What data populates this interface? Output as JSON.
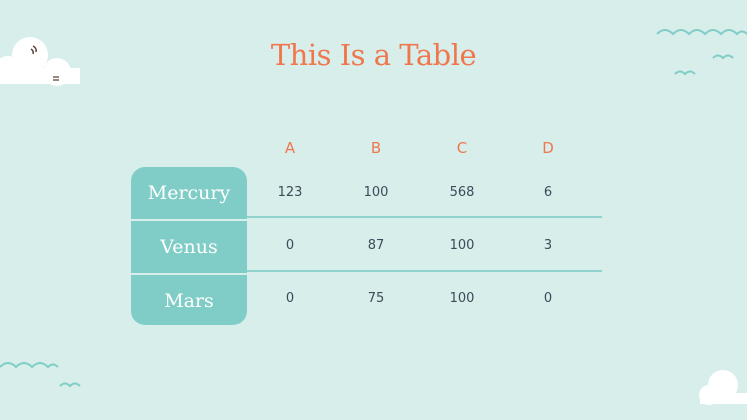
{
  "title": "This Is a Table",
  "table": {
    "columns": [
      "A",
      "B",
      "C",
      "D"
    ],
    "rows": [
      {
        "label": "Mercury",
        "values": [
          "123",
          "100",
          "568",
          "6"
        ]
      },
      {
        "label": "Venus",
        "values": [
          "0",
          "87",
          "100",
          "3"
        ]
      },
      {
        "label": "Mars",
        "values": [
          "0",
          "75",
          "100",
          "0"
        ]
      }
    ]
  },
  "colors": {
    "background": "#d7eeeb",
    "accent": "#f0774d",
    "teal": "#7fcdc6",
    "text": "#3e4a58"
  }
}
